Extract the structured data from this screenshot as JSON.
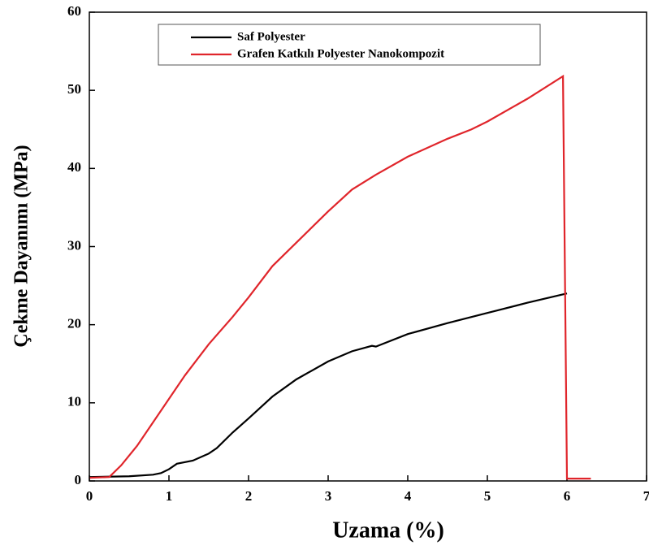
{
  "chart_data": {
    "type": "line",
    "xlabel": "Uzama (%)",
    "ylabel": "Çekme Dayanımı (MPa)",
    "xlim": [
      0,
      7
    ],
    "xticks": [
      0,
      1,
      2,
      3,
      4,
      5,
      6,
      7
    ],
    "ylim": [
      0,
      60
    ],
    "yticks": [
      0,
      10,
      20,
      30,
      40,
      50,
      60
    ],
    "legend": "top",
    "series": [
      {
        "name": "Saf Polyester",
        "color": "#000000",
        "x": [
          0,
          0.5,
          0.8,
          0.9,
          1.0,
          1.1,
          1.3,
          1.5,
          1.6,
          1.8,
          2.0,
          2.3,
          2.6,
          3.0,
          3.3,
          3.55,
          3.6,
          4.0,
          4.5,
          5.0,
          5.5,
          6.0
        ],
        "values": [
          0.5,
          0.6,
          0.8,
          1.0,
          1.5,
          2.2,
          2.6,
          3.5,
          4.2,
          6.2,
          8.0,
          10.8,
          13.0,
          15.3,
          16.6,
          17.3,
          17.2,
          18.8,
          20.2,
          21.5,
          22.8,
          24.0
        ]
      },
      {
        "name": "Grafen Katkılı Polyester Nanokompozit",
        "color": "#e0252b",
        "x": [
          0,
          0.25,
          0.4,
          0.6,
          0.8,
          1.0,
          1.2,
          1.5,
          1.8,
          2.0,
          2.3,
          2.5,
          2.8,
          3.0,
          3.3,
          3.6,
          4.0,
          4.5,
          4.8,
          5.0,
          5.5,
          5.95,
          6.0,
          6.3
        ],
        "values": [
          0.4,
          0.5,
          2,
          4.5,
          7.5,
          10.5,
          13.5,
          17.5,
          21,
          23.5,
          27.5,
          29.5,
          32.5,
          34.5,
          37.3,
          39.2,
          41.5,
          43.8,
          45.0,
          46.0,
          48.9,
          51.8,
          0.3,
          0.3
        ]
      }
    ]
  }
}
